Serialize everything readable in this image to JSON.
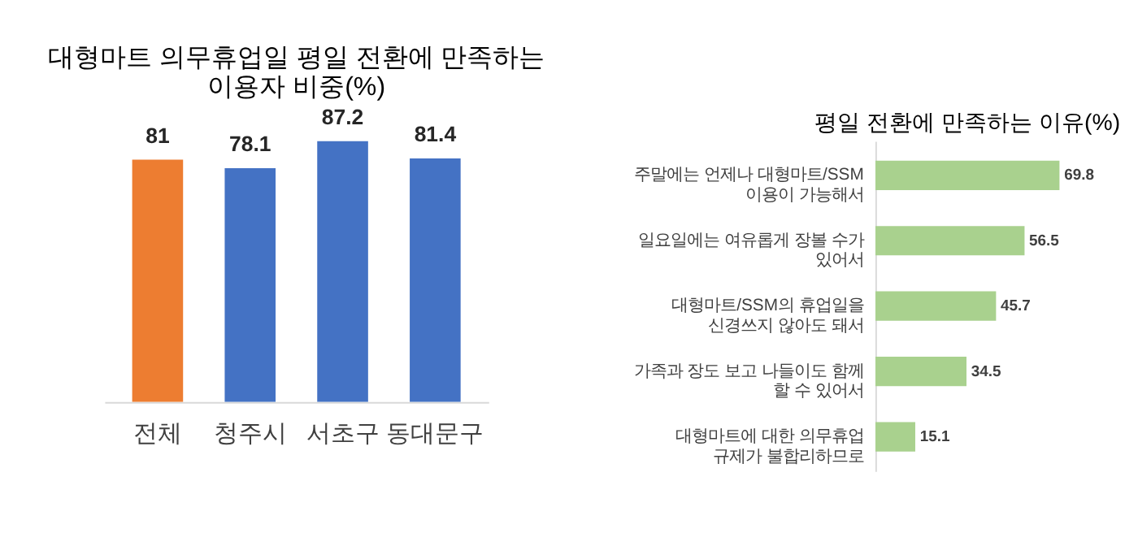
{
  "chart_data": [
    {
      "type": "bar",
      "title": "대형마트 의무휴업일 평일 전환에 만족하는\n이용자 비중(%)",
      "categories": [
        "전체",
        "청주시",
        "서초구",
        "동대문구"
      ],
      "values": [
        81,
        78.1,
        87.2,
        81.4
      ],
      "colors": [
        "#ed7d31",
        "#4472c4",
        "#4472c4",
        "#4472c4"
      ],
      "data_labels": true,
      "tick_labels": "x",
      "grid": false,
      "legend": false
    },
    {
      "type": "bar",
      "orientation": "horizontal",
      "title": "평일 전환에 만족하는 이유(%)",
      "categories": [
        "주말에는 언제나 대형마트/SSM\n이용이 가능해서",
        "일요일에는 여유롭게 장볼 수가\n있어서",
        "대형마트/SSM의 휴업일을\n신경쓰지 않아도 돼서",
        "가족과 장도 보고 나들이도 함께\n할 수 있어서",
        "대형마트에 대한 의무휴업\n규제가 불합리하므로"
      ],
      "values": [
        69.8,
        56.5,
        45.7,
        34.5,
        15.1
      ],
      "color": "#a9d18e",
      "data_labels": true,
      "tick_labels": "y",
      "grid": false,
      "legend": false
    }
  ]
}
